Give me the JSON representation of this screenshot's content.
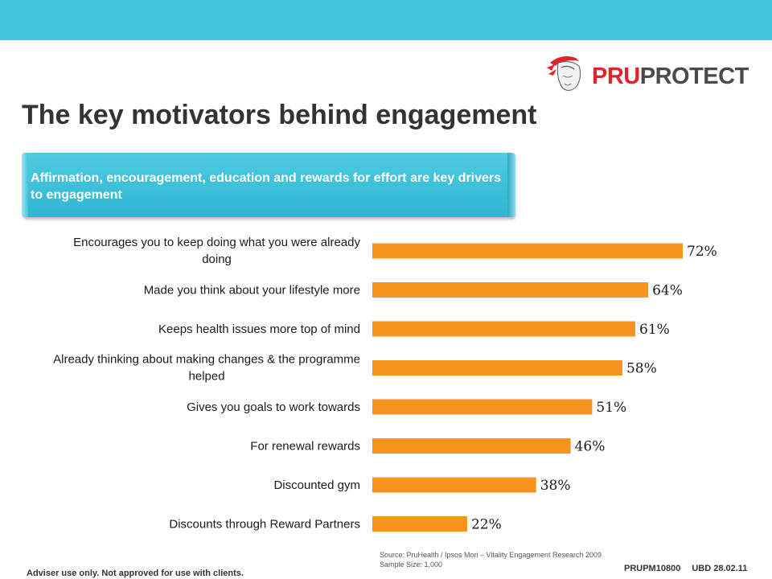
{
  "header": {
    "brand_part1": "PRU",
    "brand_part2": "PROTECT",
    "title": "The key motivators behind engagement"
  },
  "callout": {
    "text": "Affirmation, encouragement, education and rewards for effort are key drivers to engagement"
  },
  "colors": {
    "top_bar": "#41c4dd",
    "bar": "#f7941d",
    "brand_red": "#e2232a"
  },
  "chart_data": {
    "type": "bar",
    "orientation": "horizontal",
    "categories": [
      "Encourages you to keep doing what you were already doing",
      "Made you think about your lifestyle more",
      "Keeps health issues more top of mind",
      "Already thinking about making changes & the programme helped",
      "Gives you goals to work towards",
      "For renewal rewards",
      "Discounted gym",
      "Discounts through Reward Partners"
    ],
    "category_lines": [
      [
        "Encourages you to keep doing what you were already",
        "doing"
      ],
      [
        "Made you think about your lifestyle more"
      ],
      [
        "Keeps health issues more top of mind"
      ],
      [
        "Already thinking about making changes & the programme",
        "helped"
      ],
      [
        "Gives you goals to work towards"
      ],
      [
        "For renewal rewards"
      ],
      [
        "Discounted gym"
      ],
      [
        "Discounts through Reward Partners"
      ]
    ],
    "values": [
      72,
      64,
      61,
      58,
      51,
      46,
      38,
      22
    ],
    "value_labels": [
      "72%",
      "64%",
      "61%",
      "58%",
      "51%",
      "46%",
      "38%",
      "22%"
    ],
    "unit": "%",
    "xlim": [
      0,
      100
    ],
    "grid": false,
    "legend": "none"
  },
  "footer": {
    "disclaimer": "Adviser use only. Not approved for use with clients.",
    "source_line1": "Source: PruHealth / Ipsos Mori – Vitality Engagement Research 2009",
    "source_line2": "Sample Size: 1,000",
    "doc_code": "PRUPM10800",
    "date_code": "UBD 28.02.11"
  }
}
